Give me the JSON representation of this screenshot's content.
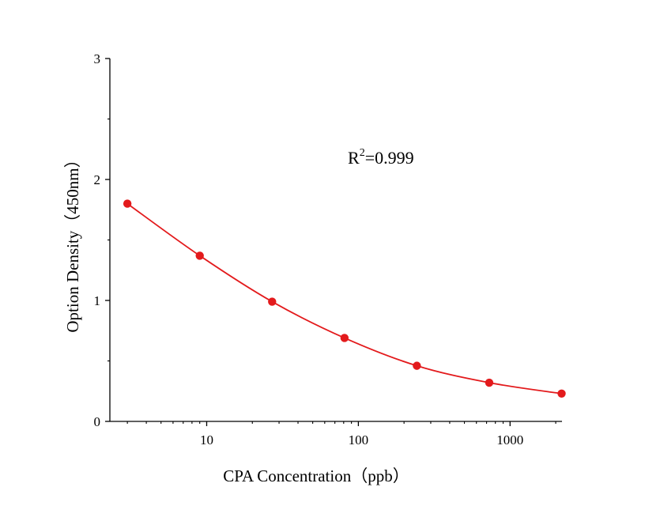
{
  "chart_data": {
    "type": "scatter",
    "title": "",
    "xlabel": "CPA Concentration（ppb）",
    "ylabel": "Option Density（450nm）",
    "x_scale": "log",
    "xlim": [
      2.3,
      2200
    ],
    "ylim": [
      0,
      3
    ],
    "x_ticks": [
      10,
      100,
      1000
    ],
    "x_tick_labels": [
      "10",
      "100",
      "1000"
    ],
    "y_ticks": [
      0,
      1,
      2,
      3
    ],
    "y_tick_labels": [
      "0",
      "1",
      "2",
      "3"
    ],
    "grid": false,
    "legend": "none",
    "series_color": "#e31a1c",
    "series": [
      {
        "x": [
          3,
          9,
          27,
          81,
          243,
          729,
          2187
        ],
        "y": [
          1.8,
          1.37,
          0.99,
          0.69,
          0.46,
          0.32,
          0.23
        ]
      }
    ],
    "annotation": {
      "base": "R",
      "sup": "2",
      "rest": "=0.999"
    }
  }
}
